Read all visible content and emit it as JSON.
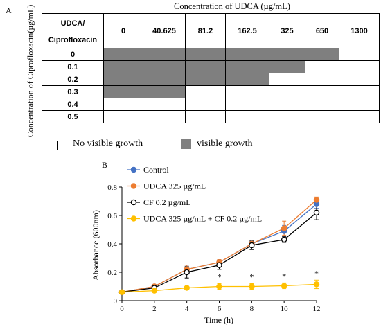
{
  "panel_a": {
    "label": "A",
    "x_title": "Concentration of UDCA (µg/mL)",
    "y_title": "Concentration of Ciprofloxacin(µg/mL)",
    "corner_line1": "UDCA/",
    "corner_line2": "Ciprofloxacin",
    "columns": [
      "0",
      "40.625",
      "81.2",
      "162.5",
      "325",
      "650",
      "1300"
    ],
    "rows": [
      {
        "label": "0",
        "growth": [
          1,
          1,
          1,
          1,
          1,
          1,
          0
        ]
      },
      {
        "label": "0.1",
        "growth": [
          1,
          1,
          1,
          1,
          1,
          0,
          0
        ]
      },
      {
        "label": "0.2",
        "growth": [
          1,
          1,
          1,
          1,
          0,
          0,
          0
        ]
      },
      {
        "label": "0.3",
        "growth": [
          1,
          1,
          0,
          0,
          0,
          0,
          0
        ]
      },
      {
        "label": "0.4",
        "growth": [
          0,
          0,
          0,
          0,
          0,
          0,
          0
        ]
      },
      {
        "label": "0.5",
        "growth": [
          0,
          0,
          0,
          0,
          0,
          0,
          0
        ]
      }
    ],
    "legend": {
      "no_growth": "No visible growth",
      "growth": "visible growth"
    },
    "colors": {
      "growth": "#7f7f7f",
      "no_growth": "#ffffff"
    }
  },
  "panel_b": {
    "label": "B"
  },
  "chart_data": {
    "type": "line",
    "xlabel": "Time (h)",
    "ylabel": "Absorbance (600nm)",
    "xlim": [
      0,
      12
    ],
    "ylim": [
      0,
      0.8
    ],
    "xticks": [
      "0",
      "2",
      "4",
      "6",
      "8",
      "10",
      "12"
    ],
    "yticks": [
      "0",
      "0.2",
      "0.4",
      "0.6",
      "0.8"
    ],
    "x": [
      0,
      2,
      4,
      6,
      8,
      10,
      12
    ],
    "series": [
      {
        "name": "Control",
        "color": "#4472c4",
        "marker": "filled",
        "values": [
          0.06,
          0.1,
          0.22,
          0.27,
          0.4,
          0.49,
          0.68
        ],
        "err": [
          0.005,
          0.01,
          0.03,
          0.02,
          0.02,
          0.04,
          0.03
        ]
      },
      {
        "name": "UDCA 325 µg/mL",
        "color": "#ed7d31",
        "marker": "filled",
        "values": [
          0.06,
          0.1,
          0.22,
          0.27,
          0.4,
          0.51,
          0.71
        ],
        "err": [
          0.005,
          0.01,
          0.03,
          0.02,
          0.02,
          0.05,
          0.02
        ]
      },
      {
        "name": "CF 0.2 µg/mL",
        "color": "#000000",
        "marker": "open",
        "values": [
          0.06,
          0.09,
          0.2,
          0.25,
          0.39,
          0.43,
          0.62
        ],
        "err": [
          0.005,
          0.01,
          0.04,
          0.03,
          0.03,
          0.02,
          0.05
        ]
      },
      {
        "name": "UDCA 325 µg/mL + CF 0.2 µg/mL",
        "color": "#ffc000",
        "marker": "filled",
        "values": [
          0.06,
          0.07,
          0.09,
          0.1,
          0.1,
          0.105,
          0.115
        ],
        "err": [
          0.005,
          0.01,
          0.01,
          0.02,
          0.02,
          0.02,
          0.03
        ]
      }
    ],
    "annotations": [
      {
        "x": 6,
        "text": "*"
      },
      {
        "x": 8,
        "text": "*"
      },
      {
        "x": 10,
        "text": "*"
      },
      {
        "x": 12,
        "text": "*"
      }
    ],
    "legend_position": "top-left",
    "grid": false
  }
}
